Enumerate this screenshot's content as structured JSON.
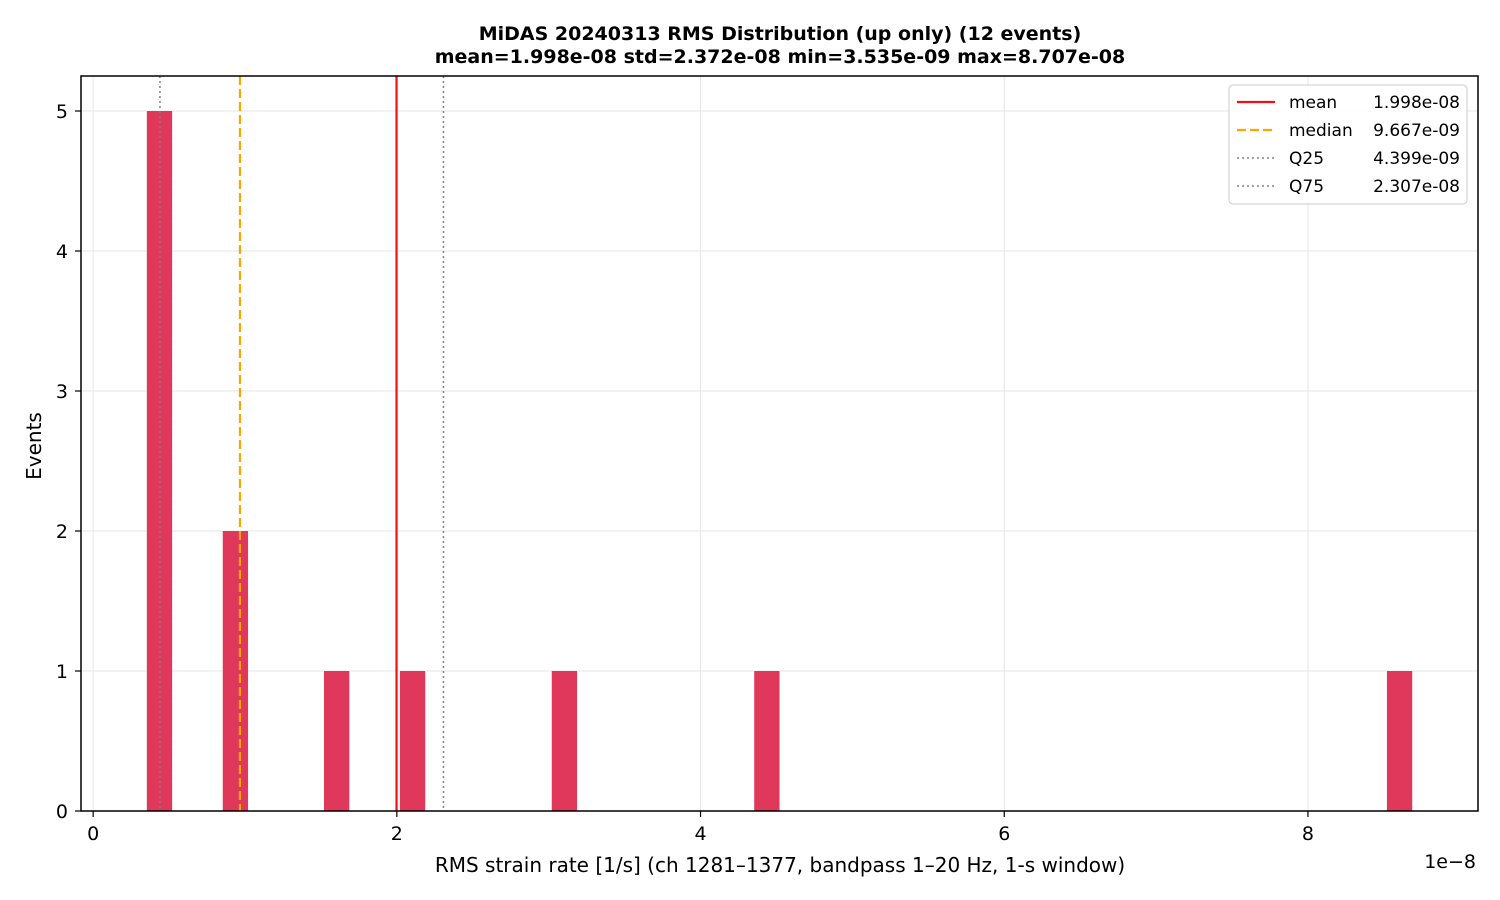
{
  "chart_data": {
    "type": "bar",
    "title": "MiDAS 20240313  RMS Distribution  (up only)  (12 events)",
    "subtitle": "mean=1.998e-08  std=2.372e-08  min=3.535e-09  max=8.707e-08",
    "xlabel": "RMS strain rate [1/s]  (ch 1281–1377, bandpass 1–20 Hz, 1-s window)",
    "ylabel": "Events",
    "x_offset_label": "1e−8",
    "xlim": [
      -0.08,
      9.12
    ],
    "ylim": [
      0,
      5.25
    ],
    "xticks": [
      0,
      2,
      4,
      6,
      8
    ],
    "yticks": [
      0,
      1,
      2,
      3,
      4,
      5
    ],
    "grid": true,
    "legend_position": "top-right",
    "bar_color": "#e0385a",
    "bins": [
      {
        "x0": 0.3535,
        "x1": 0.5202,
        "count": 5
      },
      {
        "x0": 0.8535,
        "x1": 1.0202,
        "count": 2
      },
      {
        "x0": 1.5202,
        "x1": 1.6869,
        "count": 1
      },
      {
        "x0": 2.0202,
        "x1": 2.1869,
        "count": 1
      },
      {
        "x0": 3.0202,
        "x1": 3.1869,
        "count": 1
      },
      {
        "x0": 4.3535,
        "x1": 4.5202,
        "count": 1
      },
      {
        "x0": 8.5202,
        "x1": 8.6869,
        "count": 1
      }
    ],
    "reference_lines": [
      {
        "name": "mean",
        "value": 1.998,
        "label": "1.998e-08",
        "color": "#ee1111",
        "style": "solid"
      },
      {
        "name": "median",
        "value": 0.9667,
        "label": "9.667e-09",
        "color": "#ffa500",
        "style": "dashed"
      },
      {
        "name": "Q25",
        "value": 0.4399,
        "label": "4.399e-09",
        "color": "#808080",
        "style": "dotted"
      },
      {
        "name": "Q75",
        "value": 2.307,
        "label": "2.307e-08",
        "color": "#808080",
        "style": "dotted"
      }
    ]
  }
}
